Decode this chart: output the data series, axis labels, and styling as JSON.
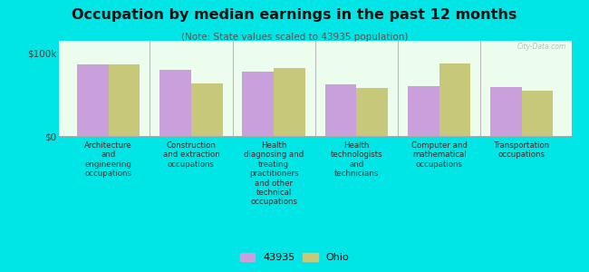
{
  "title": "Occupation by median earnings in the past 12 months",
  "subtitle": "(Note: State values scaled to 43935 population)",
  "categories": [
    "Architecture\nand\nengineering\noccupations",
    "Construction\nand extraction\noccupations",
    "Health\ndiagnosing and\ntreating\npractitioners\nand other\ntechnical\noccupations",
    "Health\ntechnologists\nand\ntechnicians",
    "Computer and\nmathematical\noccupations",
    "Transportation\noccupations"
  ],
  "values_43935": [
    87000,
    80000,
    78000,
    62000,
    60000,
    59000
  ],
  "values_ohio": [
    86000,
    63000,
    82000,
    58000,
    88000,
    55000
  ],
  "color_43935": "#c9a0dc",
  "color_ohio": "#c8c87a",
  "ylim": [
    0,
    115000
  ],
  "yticks": [
    0,
    100000
  ],
  "ytick_labels": [
    "$0",
    "$100k"
  ],
  "legend_43935": "43935",
  "legend_ohio": "Ohio",
  "background_color": "#edfded",
  "outer_background": "#00e5e5",
  "watermark": "City-Data.com",
  "bar_width": 0.38
}
